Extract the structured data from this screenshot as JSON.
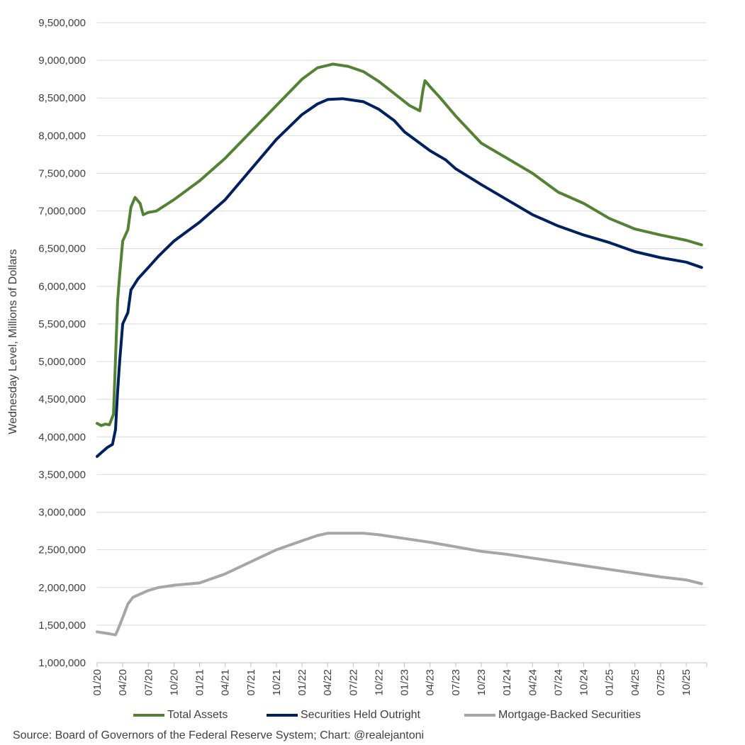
{
  "chart_data": {
    "type": "line",
    "title": "",
    "xlabel": "",
    "ylabel": "Wednesday Level, Millions of Dollars",
    "ylim": [
      1000000,
      9500000
    ],
    "yticks": [
      "1,000,000",
      "1,500,000",
      "2,000,000",
      "2,500,000",
      "3,000,000",
      "3,500,000",
      "4,000,000",
      "4,500,000",
      "5,000,000",
      "5,500,000",
      "6,000,000",
      "6,500,000",
      "7,000,000",
      "7,500,000",
      "8,000,000",
      "8,500,000",
      "9,000,000",
      "9,500,000"
    ],
    "ytick_values": [
      1000000,
      1500000,
      2000000,
      2500000,
      3000000,
      3500000,
      4000000,
      4500000,
      5000000,
      5500000,
      6000000,
      6500000,
      7000000,
      7500000,
      8000000,
      8500000,
      9000000,
      9500000
    ],
    "xlim": [
      2020.0,
      2025.95
    ],
    "xticks": [
      "01/20",
      "04/20",
      "07/20",
      "10/20",
      "01/21",
      "04/21",
      "07/21",
      "10/21",
      "01/22",
      "04/22",
      "07/22",
      "10/22",
      "01/23",
      "04/23",
      "07/23",
      "10/23",
      "01/24",
      "04/24",
      "07/24",
      "10/24",
      "01/25",
      "04/25",
      "07/25",
      "10/25"
    ],
    "xtick_values": [
      2020.0,
      2020.25,
      2020.5,
      2020.75,
      2021.0,
      2021.25,
      2021.5,
      2021.75,
      2022.0,
      2022.25,
      2022.5,
      2022.75,
      2023.0,
      2023.25,
      2023.5,
      2023.75,
      2024.0,
      2024.25,
      2024.5,
      2024.75,
      2025.0,
      2025.25,
      2025.5,
      2025.75
    ],
    "grid": "horizontal",
    "legend_position": "bottom",
    "series": [
      {
        "name": "Total Assets",
        "color": "#548235",
        "x": [
          2020.0,
          2020.04,
          2020.08,
          2020.12,
          2020.16,
          2020.2,
          2020.22,
          2020.25,
          2020.3,
          2020.33,
          2020.37,
          2020.42,
          2020.45,
          2020.5,
          2020.58,
          2020.75,
          2021.0,
          2021.25,
          2021.5,
          2021.75,
          2022.0,
          2022.15,
          2022.3,
          2022.45,
          2022.6,
          2022.75,
          2022.9,
          2023.05,
          2023.15,
          2023.18,
          2023.2,
          2023.25,
          2023.35,
          2023.5,
          2023.75,
          2024.0,
          2024.25,
          2024.5,
          2024.75,
          2025.0,
          2025.25,
          2025.5,
          2025.75,
          2025.9
        ],
        "values": [
          4180000,
          4150000,
          4170000,
          4160000,
          4300000,
          5800000,
          6150000,
          6600000,
          6750000,
          7050000,
          7180000,
          7100000,
          6950000,
          6980000,
          7000000,
          7150000,
          7400000,
          7700000,
          8050000,
          8400000,
          8750000,
          8900000,
          8950000,
          8920000,
          8850000,
          8720000,
          8560000,
          8400000,
          8330000,
          8600000,
          8730000,
          8650000,
          8500000,
          8260000,
          7900000,
          7700000,
          7500000,
          7250000,
          7100000,
          6900000,
          6760000,
          6680000,
          6610000,
          6550000
        ]
      },
      {
        "name": "Securities Held Outright",
        "color": "#002060",
        "x": [
          2020.0,
          2020.05,
          2020.1,
          2020.15,
          2020.18,
          2020.2,
          2020.22,
          2020.25,
          2020.3,
          2020.33,
          2020.4,
          2020.5,
          2020.6,
          2020.75,
          2021.0,
          2021.25,
          2021.5,
          2021.75,
          2022.0,
          2022.15,
          2022.25,
          2022.4,
          2022.6,
          2022.75,
          2022.9,
          2023.0,
          2023.15,
          2023.25,
          2023.4,
          2023.5,
          2023.75,
          2024.0,
          2024.25,
          2024.5,
          2024.75,
          2025.0,
          2025.25,
          2025.5,
          2025.75,
          2025.9
        ],
        "values": [
          3740000,
          3800000,
          3860000,
          3900000,
          4100000,
          4600000,
          5000000,
          5500000,
          5650000,
          5950000,
          6100000,
          6250000,
          6400000,
          6600000,
          6850000,
          7150000,
          7550000,
          7950000,
          8280000,
          8420000,
          8480000,
          8490000,
          8450000,
          8350000,
          8200000,
          8050000,
          7900000,
          7800000,
          7680000,
          7560000,
          7350000,
          7150000,
          6950000,
          6800000,
          6680000,
          6580000,
          6460000,
          6380000,
          6320000,
          6250000
        ]
      },
      {
        "name": "Mortgage-Backed Securities",
        "color": "#a6a6a6",
        "x": [
          2020.0,
          2020.05,
          2020.1,
          2020.18,
          2020.2,
          2020.25,
          2020.3,
          2020.35,
          2020.4,
          2020.5,
          2020.6,
          2020.75,
          2021.0,
          2021.25,
          2021.5,
          2021.75,
          2022.0,
          2022.15,
          2022.25,
          2022.4,
          2022.6,
          2022.75,
          2022.9,
          2023.0,
          2023.25,
          2023.5,
          2023.75,
          2024.0,
          2024.25,
          2024.5,
          2024.75,
          2025.0,
          2025.25,
          2025.5,
          2025.75,
          2025.9
        ],
        "values": [
          1410000,
          1400000,
          1390000,
          1370000,
          1430000,
          1600000,
          1780000,
          1870000,
          1900000,
          1960000,
          2000000,
          2030000,
          2060000,
          2180000,
          2340000,
          2500000,
          2620000,
          2690000,
          2720000,
          2720000,
          2720000,
          2700000,
          2670000,
          2650000,
          2600000,
          2540000,
          2480000,
          2440000,
          2390000,
          2340000,
          2290000,
          2240000,
          2190000,
          2140000,
          2100000,
          2050000
        ]
      }
    ]
  },
  "legend": {
    "items": [
      {
        "label": "Total Assets",
        "color": "#548235"
      },
      {
        "label": "Securities Held Outright",
        "color": "#002060"
      },
      {
        "label": "Mortgage-Backed Securities",
        "color": "#a6a6a6"
      }
    ]
  },
  "source_text": "Source: Board of Governors of the Federal Reserve System; Chart: @realejantoni"
}
